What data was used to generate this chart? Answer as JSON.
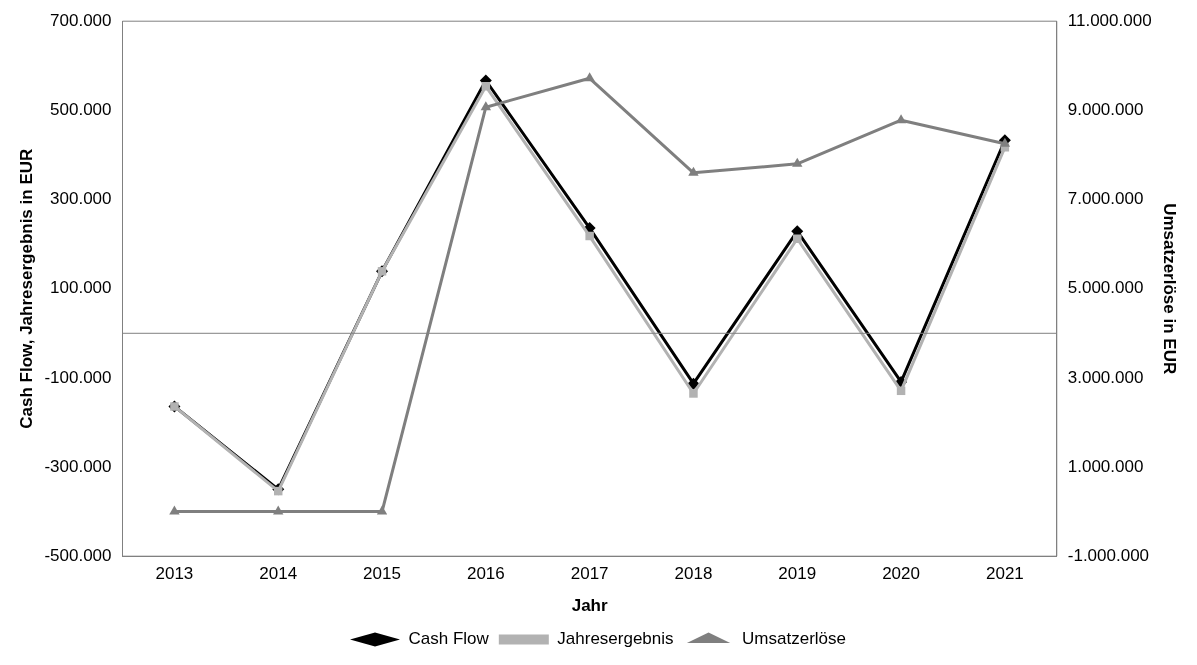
{
  "chart_data": {
    "type": "line",
    "xlabel": "Jahr",
    "ylabel": "Cash Flow, Jahresergebnis in EUR",
    "y2label": "Umsatzerlöse in EUR",
    "categories": [
      "2013",
      "2014",
      "2015",
      "2016",
      "2017",
      "2018",
      "2019",
      "2020",
      "2021"
    ],
    "series": [
      {
        "name": "Cash Flow",
        "color": "#000000",
        "marker": "diamond",
        "values": [
          -164000,
          -350000,
          139000,
          567000,
          236000,
          -113000,
          229000,
          -109000,
          433000
        ]
      },
      {
        "name": "Jahresergebnis",
        "color": "#b2b2b2",
        "marker": "square",
        "values": [
          -164000,
          -354000,
          139000,
          554000,
          218000,
          -135000,
          212000,
          -129000,
          417000
        ]
      },
      {
        "name": "Umsatzerlöse",
        "color": "#7f7f7f",
        "marker": "triangle",
        "axis": "y2",
        "values": [
          0,
          0,
          0,
          9070000,
          9720000,
          7600000,
          7800000,
          8780000,
          8250000
        ]
      }
    ],
    "ylim": [
      -500000,
      700000
    ],
    "yticks": [
      {
        "value": -500000,
        "label": "-500.000"
      },
      {
        "value": -300000,
        "label": "-300.000"
      },
      {
        "value": -100000,
        "label": "-100.000"
      },
      {
        "value": 100000,
        "label": "100.000"
      },
      {
        "value": 300000,
        "label": "300.000"
      },
      {
        "value": 500000,
        "label": "500.000"
      },
      {
        "value": 700000,
        "label": "700.000"
      }
    ],
    "y2lim": [
      -1000000,
      11000000
    ],
    "y2ticks": [
      {
        "value": -1000000,
        "label": "-1.000.000"
      },
      {
        "value": 1000000,
        "label": "1.000.000"
      },
      {
        "value": 3000000,
        "label": "3.000.000"
      },
      {
        "value": 5000000,
        "label": "5.000.000"
      },
      {
        "value": 7000000,
        "label": "7.000.000"
      },
      {
        "value": 9000000,
        "label": "9.000.000"
      },
      {
        "value": 11000000,
        "label": "11.000.000"
      }
    ],
    "grid": false,
    "legend": "bottom",
    "line_style": "solid"
  }
}
